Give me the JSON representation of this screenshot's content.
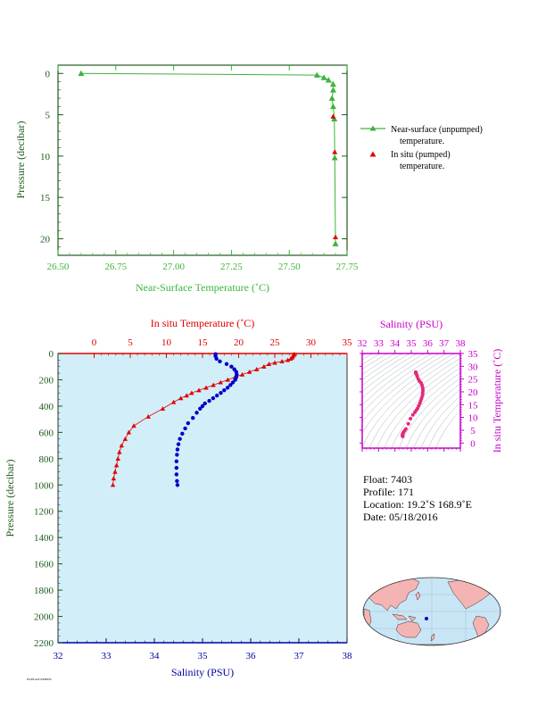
{
  "colors": {
    "green": "#3cb43c",
    "red": "#e10000",
    "blue": "#0000c8",
    "magenta": "#c800c8",
    "dark_green": "#1e5a1e",
    "plot_bg": "#d2eef8",
    "salinity_axis": "#0000a0",
    "land": "#f5b4b4",
    "ocean": "#c8e6f5"
  },
  "chart_data": [
    {
      "type": "line",
      "id": "near_surface",
      "xlabel": "Near-Surface Temperature (˚C)",
      "ylabel": "Pressure (decibar)",
      "xlim": [
        26.5,
        27.75
      ],
      "ylim": [
        22,
        -1
      ],
      "x_ticks": [
        "26.50",
        "26.75",
        "27.00",
        "27.25",
        "27.50",
        "27.75"
      ],
      "y_ticks": [
        "0",
        "5",
        "10",
        "15",
        "20"
      ],
      "legend": [
        "Near-surface (unpumped)",
        "temperature.",
        "In situ (pumped)",
        "temperature."
      ],
      "legend_position": "right",
      "series": [
        {
          "name": "Near-surface (unpumped) temperature.",
          "marker": "triangle",
          "points": [
            [
              26.6,
              0.0
            ],
            [
              27.62,
              0.2
            ],
            [
              27.65,
              0.5
            ],
            [
              27.67,
              0.8
            ],
            [
              27.69,
              1.3
            ],
            [
              27.69,
              2.0
            ],
            [
              27.685,
              3.0
            ],
            [
              27.69,
              4.0
            ],
            [
              27.695,
              5.5
            ],
            [
              27.697,
              10.2
            ],
            [
              27.7,
              20.6
            ]
          ]
        },
        {
          "name": "In situ (pumped) temperature.",
          "marker": "triangle",
          "points": [
            [
              27.69,
              5.2
            ],
            [
              27.697,
              9.5
            ],
            [
              27.7,
              19.8
            ]
          ]
        }
      ]
    },
    {
      "type": "scatter",
      "id": "profile",
      "top_xlabel": "In situ Temperature (˚C)",
      "bottom_xlabel": "Salinity (PSU)",
      "ylabel": "Pressure (decibar)",
      "temp_lim": [
        -5,
        35
      ],
      "sal_lim": [
        32,
        38
      ],
      "ylim": [
        2200,
        0
      ],
      "temp_ticks": [
        "0",
        "5",
        "10",
        "15",
        "20",
        "25",
        "30",
        "35"
      ],
      "sal_ticks": [
        "32",
        "33",
        "34",
        "35",
        "36",
        "37",
        "38"
      ],
      "y_ticks": [
        "0",
        "200",
        "400",
        "600",
        "800",
        "1000",
        "1200",
        "1400",
        "1600",
        "1800",
        "2000",
        "2200"
      ],
      "temperature": [
        [
          27.7,
          5
        ],
        [
          27.6,
          10
        ],
        [
          27.5,
          20
        ],
        [
          27.4,
          30
        ],
        [
          27.2,
          40
        ],
        [
          26.8,
          50
        ],
        [
          26,
          60
        ],
        [
          25,
          70
        ],
        [
          24.2,
          80
        ],
        [
          23.5,
          100
        ],
        [
          22.5,
          120
        ],
        [
          21.5,
          140
        ],
        [
          20.5,
          160
        ],
        [
          19.5,
          180
        ],
        [
          18.5,
          200
        ],
        [
          17.5,
          220
        ],
        [
          16.5,
          240
        ],
        [
          15.5,
          260
        ],
        [
          14.5,
          280
        ],
        [
          13.5,
          300
        ],
        [
          12.8,
          320
        ],
        [
          12,
          340
        ],
        [
          11,
          370
        ],
        [
          9.5,
          420
        ],
        [
          7.5,
          480
        ],
        [
          5.5,
          550
        ],
        [
          4.8,
          600
        ],
        [
          4.3,
          650
        ],
        [
          3.8,
          700
        ],
        [
          3.5,
          750
        ],
        [
          3.3,
          800
        ],
        [
          3.1,
          850
        ],
        [
          2.9,
          900
        ],
        [
          2.7,
          950
        ],
        [
          2.6,
          1000
        ]
      ],
      "salinity": [
        [
          35.27,
          5
        ],
        [
          35.27,
          20
        ],
        [
          35.29,
          40
        ],
        [
          35.36,
          60
        ],
        [
          35.5,
          80
        ],
        [
          35.6,
          100
        ],
        [
          35.66,
          120
        ],
        [
          35.7,
          140
        ],
        [
          35.71,
          160
        ],
        [
          35.7,
          180
        ],
        [
          35.68,
          200
        ],
        [
          35.63,
          220
        ],
        [
          35.58,
          240
        ],
        [
          35.52,
          260
        ],
        [
          35.45,
          280
        ],
        [
          35.38,
          300
        ],
        [
          35.3,
          320
        ],
        [
          35.22,
          340
        ],
        [
          35.14,
          360
        ],
        [
          35.05,
          380
        ],
        [
          35.0,
          400
        ],
        [
          34.95,
          420
        ],
        [
          34.88,
          450
        ],
        [
          34.8,
          490
        ],
        [
          34.7,
          530
        ],
        [
          34.64,
          570
        ],
        [
          34.58,
          610
        ],
        [
          34.53,
          650
        ],
        [
          34.5,
          690
        ],
        [
          34.48,
          730
        ],
        [
          34.47,
          770
        ],
        [
          34.46,
          820
        ],
        [
          34.46,
          870
        ],
        [
          34.46,
          920
        ],
        [
          34.47,
          970
        ],
        [
          34.48,
          1000
        ]
      ]
    },
    {
      "type": "scatter",
      "id": "ts_diagram",
      "top_xlabel": "Salinity (PSU)",
      "ylabel": "In situ Temperature (˚C)",
      "xlim": [
        32,
        38
      ],
      "ylim": [
        -2,
        35
      ],
      "x_ticks": [
        "32",
        "33",
        "34",
        "35",
        "36",
        "37",
        "38"
      ],
      "y_ticks": [
        "0",
        "5",
        "10",
        "15",
        "20",
        "25",
        "30",
        "35"
      ]
    }
  ],
  "info": {
    "float": "Float:  7403",
    "profile": "Profile:  171",
    "location": "Location:  19.2˚S  168.9˚E",
    "date": "Date:  05/18/2016"
  },
  "footer": "FSOFLOAT 83086876"
}
